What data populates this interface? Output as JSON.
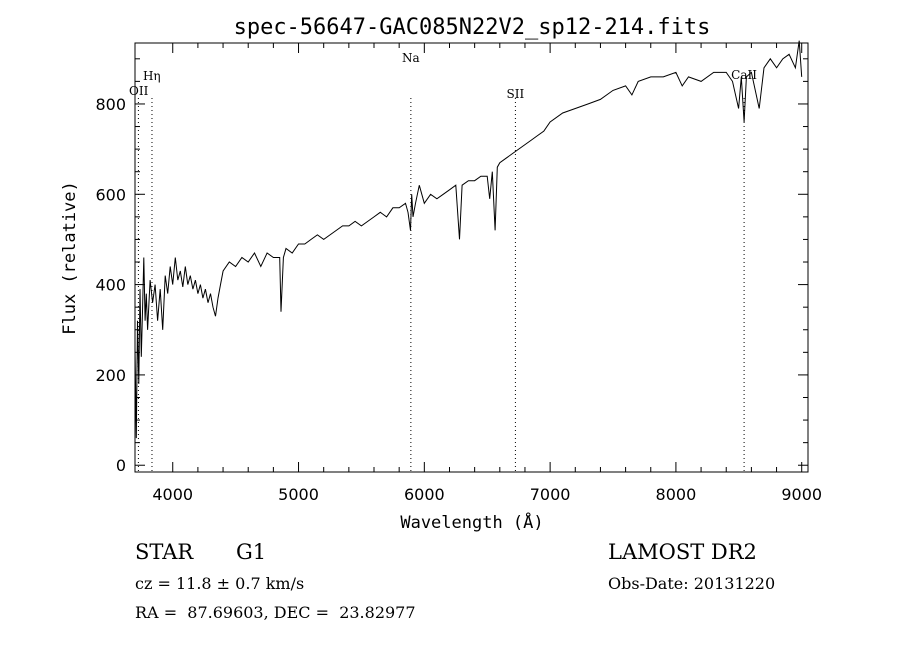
{
  "chart_data": {
    "type": "line",
    "title": "spec-56647-GAC085N22V2_sp12-214.fits",
    "xlabel": "Wavelength (Å)",
    "ylabel": "Flux (relative)",
    "xlim": [
      3700,
      9050
    ],
    "ylim": [
      -15,
      935
    ],
    "xticks": [
      4000,
      5000,
      6000,
      7000,
      8000,
      9000
    ],
    "yticks": [
      0,
      200,
      400,
      600,
      800
    ],
    "grid": false,
    "series": [
      {
        "x": [
          3700,
          3710,
          3720,
          3730,
          3740,
          3750,
          3760,
          3770,
          3780,
          3790,
          3800,
          3820,
          3840,
          3860,
          3880,
          3900,
          3920,
          3940,
          3960,
          3980,
          4000,
          4020,
          4040,
          4060,
          4080,
          4100,
          4120,
          4140,
          4160,
          4180,
          4200,
          4220,
          4240,
          4260,
          4280,
          4300,
          4320,
          4340,
          4360,
          4380,
          4400,
          4450,
          4500,
          4550,
          4600,
          4650,
          4700,
          4750,
          4800,
          4850,
          4861,
          4880,
          4900,
          4950,
          5000,
          5050,
          5100,
          5150,
          5200,
          5250,
          5300,
          5350,
          5400,
          5450,
          5500,
          5550,
          5600,
          5650,
          5700,
          5750,
          5800,
          5850,
          5870,
          5890,
          5900,
          5910,
          5930,
          5960,
          6000,
          6050,
          6100,
          6150,
          6200,
          6250,
          6280,
          6300,
          6350,
          6400,
          6450,
          6500,
          6520,
          6540,
          6563,
          6580,
          6600,
          6650,
          6700,
          6750,
          6800,
          6850,
          6900,
          6950,
          7000,
          7100,
          7200,
          7300,
          7400,
          7500,
          7600,
          7650,
          7700,
          7800,
          7900,
          8000,
          8050,
          8100,
          8200,
          8300,
          8400,
          8450,
          8498,
          8520,
          8542,
          8560,
          8600,
          8662,
          8700,
          8750,
          8800,
          8850,
          8900,
          8950,
          8980,
          9000
        ],
        "y": [
          260,
          60,
          320,
          180,
          390,
          240,
          340,
          460,
          320,
          380,
          300,
          410,
          360,
          400,
          320,
          390,
          300,
          420,
          380,
          440,
          400,
          460,
          410,
          430,
          395,
          440,
          400,
          420,
          390,
          410,
          380,
          400,
          370,
          390,
          360,
          380,
          350,
          330,
          370,
          400,
          430,
          450,
          440,
          460,
          450,
          470,
          440,
          470,
          460,
          460,
          340,
          460,
          480,
          470,
          490,
          490,
          500,
          510,
          500,
          510,
          520,
          530,
          530,
          540,
          530,
          540,
          550,
          560,
          550,
          570,
          570,
          580,
          560,
          520,
          600,
          550,
          580,
          620,
          580,
          600,
          590,
          600,
          610,
          620,
          500,
          620,
          630,
          630,
          640,
          640,
          590,
          650,
          520,
          660,
          670,
          680,
          690,
          700,
          710,
          720,
          730,
          740,
          760,
          780,
          790,
          800,
          810,
          830,
          840,
          820,
          850,
          860,
          860,
          870,
          840,
          860,
          850,
          870,
          870,
          850,
          790,
          860,
          760,
          860,
          870,
          790,
          880,
          900,
          880,
          900,
          910,
          880,
          940,
          860
        ]
      }
    ],
    "line_markers": [
      {
        "label": "OII",
        "wavelength": 3727
      },
      {
        "label": "Hη",
        "wavelength": 3835
      },
      {
        "label": "Na",
        "wavelength": 5893
      },
      {
        "label": "SII",
        "wavelength": 6724
      },
      {
        "label": "CaII",
        "wavelength": 8542
      }
    ]
  },
  "footer": {
    "object_class": "STAR",
    "subclass": "G1",
    "survey": "LAMOST DR2",
    "cz": "cz = 11.8 ± 0.7 km/s",
    "obs_date": "Obs-Date: 20131220",
    "coords": "RA =  87.69603, DEC =  23.82977"
  }
}
